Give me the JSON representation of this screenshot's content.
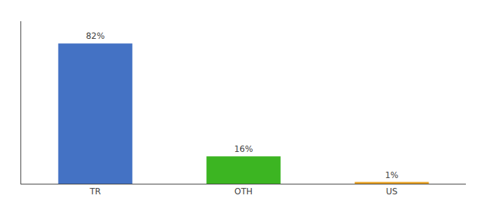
{
  "chart_data": {
    "type": "bar",
    "categories": [
      "TR",
      "OTH",
      "US"
    ],
    "values": [
      82,
      16,
      1
    ],
    "value_labels": [
      "82%",
      "16%",
      "1%"
    ],
    "colors": [
      "#4472C4",
      "#3CB522",
      "#E8A020"
    ],
    "ylim": [
      0,
      95
    ],
    "data_labels": true,
    "tick_labels": "x",
    "grid": false
  }
}
